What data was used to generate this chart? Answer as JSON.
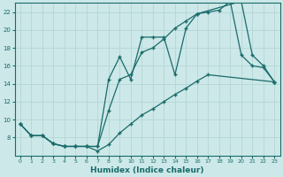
{
  "xlabel": "Humidex (Indice chaleur)",
  "bg_color": "#cce8e8",
  "grid_color": "#b8d8d8",
  "line_color": "#1a6b6b",
  "xlim": [
    -0.5,
    23.5
  ],
  "ylim": [
    6,
    23
  ],
  "xticks": [
    0,
    1,
    2,
    3,
    4,
    5,
    6,
    7,
    8,
    9,
    10,
    11,
    12,
    13,
    14,
    15,
    16,
    17,
    18,
    19,
    20,
    21,
    22,
    23
  ],
  "yticks": [
    8,
    10,
    12,
    14,
    16,
    18,
    20,
    22
  ],
  "series": [
    {
      "x": [
        0,
        1,
        2,
        3,
        4,
        5,
        6,
        7,
        8,
        9,
        10,
        11,
        12,
        13,
        14,
        15,
        16,
        20,
        21,
        22,
        23
      ],
      "y": [
        9.5,
        8.2,
        8.2,
        7.3,
        7.0,
        7.0,
        7.0,
        7.0,
        14.5,
        17.0,
        14.5,
        19.2,
        19.2,
        19.2,
        15.0,
        20.2,
        21.8,
        23.2,
        17.2,
        16.0,
        14.2
      ]
    },
    {
      "x": [
        0,
        1,
        2,
        3,
        4,
        5,
        6,
        7,
        8,
        9,
        10,
        11,
        12,
        13,
        14,
        15,
        16,
        17,
        18,
        19,
        20,
        21,
        22,
        23
      ],
      "y": [
        9.5,
        8.2,
        8.2,
        7.3,
        7.0,
        7.0,
        7.0,
        7.0,
        11.0,
        14.5,
        15.0,
        17.5,
        18.0,
        19.0,
        20.2,
        21.0,
        21.8,
        22.0,
        22.2,
        23.2,
        17.2,
        16.0,
        15.8,
        14.2
      ]
    },
    {
      "x": [
        0,
        1,
        2,
        3,
        4,
        5,
        6,
        7,
        8,
        9,
        10,
        11,
        12,
        13,
        14,
        15,
        16,
        17,
        23
      ],
      "y": [
        9.5,
        8.2,
        8.2,
        7.3,
        7.0,
        7.0,
        7.0,
        6.5,
        7.2,
        8.5,
        9.5,
        10.5,
        11.2,
        12.0,
        12.8,
        13.5,
        14.3,
        15.0,
        14.2
      ]
    }
  ]
}
